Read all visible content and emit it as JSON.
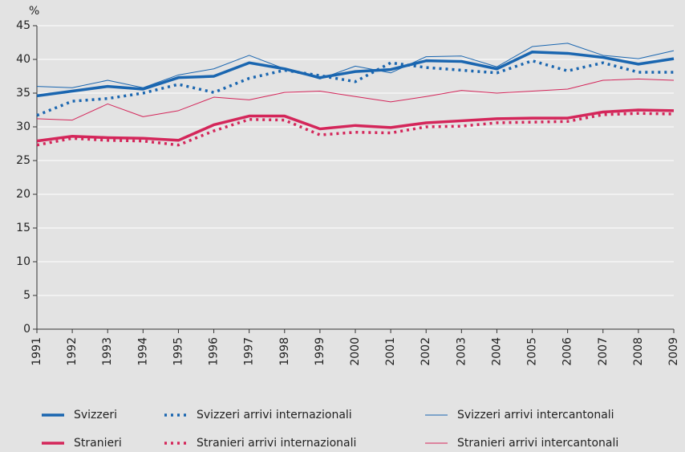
{
  "chart_data": {
    "type": "line",
    "y_label": "%",
    "categories": [
      "1991",
      "1992",
      "1993",
      "1994",
      "1995",
      "1996",
      "1997",
      "1998",
      "1999",
      "2000",
      "2001",
      "2002",
      "2003",
      "2004",
      "2005",
      "2006",
      "2007",
      "2008",
      "2009"
    ],
    "ylim": [
      0,
      45
    ],
    "yticks": [
      0,
      5,
      10,
      15,
      20,
      25,
      30,
      35,
      40,
      45
    ],
    "grid": true,
    "series": [
      {
        "name": "Svizzeri",
        "color": "#1a66b0",
        "line_style": "thick",
        "values": [
          34.6,
          35.3,
          36.0,
          35.6,
          37.3,
          37.5,
          39.5,
          38.6,
          37.3,
          38.2,
          38.5,
          39.8,
          39.7,
          38.6,
          41.1,
          40.9,
          40.3,
          39.3,
          40.1
        ]
      },
      {
        "name": "Svizzeri arrivi internazionali",
        "color": "#1a66b0",
        "line_style": "dotted",
        "values": [
          31.7,
          33.8,
          34.2,
          35.0,
          36.3,
          35.1,
          37.2,
          38.4,
          37.6,
          36.7,
          39.5,
          38.8,
          38.4,
          38.0,
          39.8,
          38.3,
          39.5,
          38.1,
          38.1
        ]
      },
      {
        "name": "Svizzeri arrivi intercantonali",
        "color": "#1a66b0",
        "line_style": "thin",
        "values": [
          36.0,
          35.8,
          36.9,
          35.8,
          37.7,
          38.6,
          40.6,
          38.6,
          37.1,
          39.0,
          38.0,
          40.4,
          40.5,
          38.9,
          41.9,
          42.4,
          40.6,
          40.1,
          41.3
        ]
      },
      {
        "name": "Stranieri",
        "color": "#d4265a",
        "line_style": "thick",
        "values": [
          27.9,
          28.6,
          28.4,
          28.3,
          28.0,
          30.3,
          31.6,
          31.6,
          29.7,
          30.2,
          29.9,
          30.6,
          30.9,
          31.2,
          31.3,
          31.3,
          32.2,
          32.5,
          32.4
        ]
      },
      {
        "name": "Stranieri arrivi internazionali",
        "color": "#d4265a",
        "line_style": "dotted",
        "values": [
          27.3,
          28.3,
          28.0,
          27.9,
          27.3,
          29.4,
          31.1,
          31.0,
          28.8,
          29.2,
          29.1,
          30.0,
          30.1,
          30.6,
          30.7,
          30.8,
          31.8,
          32.0,
          31.9
        ]
      },
      {
        "name": "Stranieri arrivi intercantonali",
        "color": "#d4265a",
        "line_style": "thin",
        "values": [
          31.2,
          31.0,
          33.4,
          31.5,
          32.4,
          34.4,
          34.0,
          35.1,
          35.3,
          34.5,
          33.7,
          34.5,
          35.4,
          35.0,
          35.3,
          35.6,
          36.9,
          37.1,
          36.9
        ]
      }
    ]
  }
}
